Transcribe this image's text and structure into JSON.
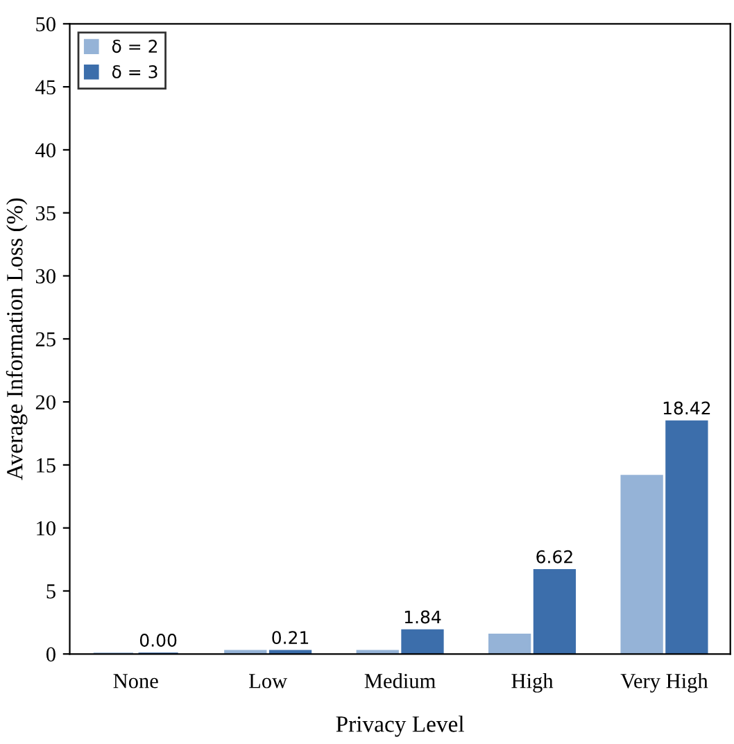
{
  "chart_data": {
    "type": "bar",
    "xlabel": "Privacy Level",
    "ylabel": "Average Information Loss (%)",
    "categories": [
      "None",
      "Low",
      "Medium",
      "High",
      "Very High"
    ],
    "series": [
      {
        "name": "δ = 2",
        "color": "#95b3d7",
        "values": [
          0,
          0.2,
          0.2,
          1.5,
          14.1
        ]
      },
      {
        "name": "δ = 3",
        "color": "#3c6eab",
        "values": [
          0.0,
          0.21,
          1.84,
          6.62,
          18.42
        ],
        "value_labels": [
          "0.00",
          "0.21",
          "1.84",
          "6.62",
          "18.42"
        ]
      }
    ],
    "ylim": [
      0,
      50
    ],
    "yticks": [
      0,
      5,
      10,
      15,
      20,
      25,
      30,
      35,
      40,
      45,
      50
    ],
    "grid": false,
    "legend": "top left"
  }
}
